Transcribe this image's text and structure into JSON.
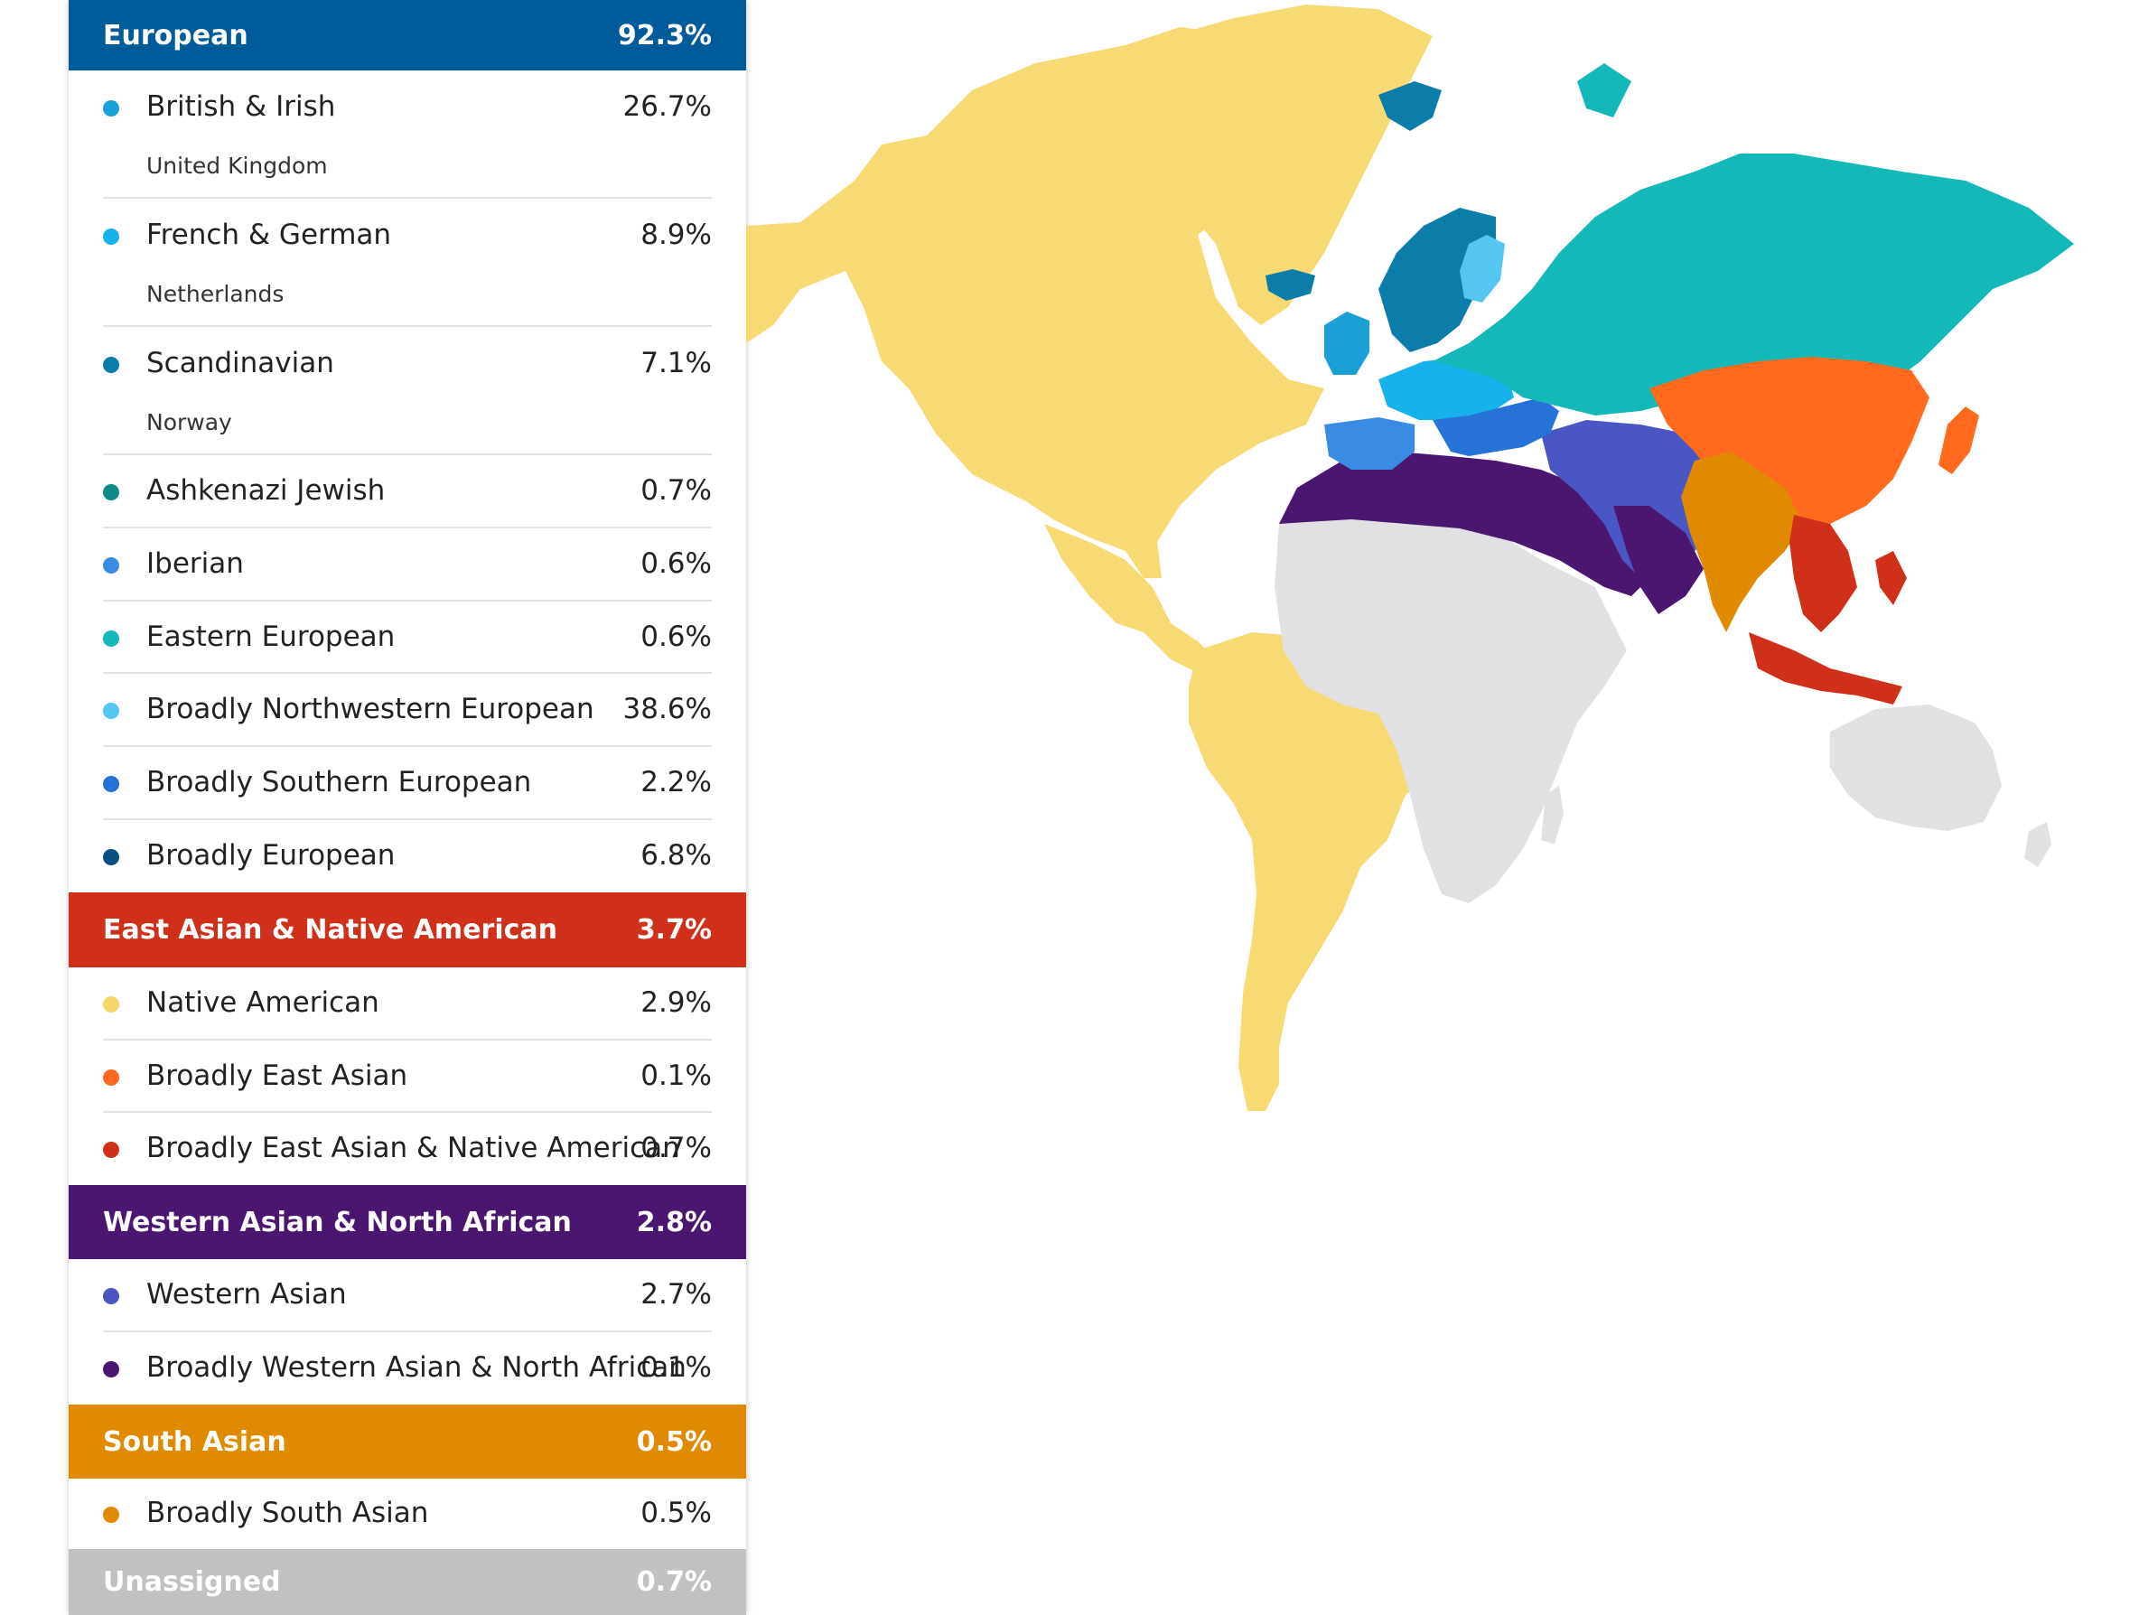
{
  "groups": [
    {
      "label": "European",
      "pct": "92.3%",
      "color": "#005b9a"
    },
    {
      "label": "East Asian & Native American",
      "pct": "3.7%",
      "color": "#d03019"
    },
    {
      "label": "Western Asian & North African",
      "pct": "2.8%",
      "color": "#4a1670"
    },
    {
      "label": "South Asian",
      "pct": "0.5%",
      "color": "#e08a00"
    },
    {
      "label": "Unassigned",
      "pct": "0.7%",
      "color": "#c0c1c3"
    }
  ],
  "european": [
    {
      "name": "British & Irish",
      "pct": "26.7%",
      "sub": "United Kingdom",
      "color": "#1a9fd6"
    },
    {
      "name": "French & German",
      "pct": "8.9%",
      "sub": "Netherlands",
      "color": "#17b1ec"
    },
    {
      "name": "Scandinavian",
      "pct": "7.1%",
      "sub": "Norway",
      "color": "#0c7ca8"
    },
    {
      "name": "Ashkenazi Jewish",
      "pct": "0.7%",
      "color": "#0e8b86"
    },
    {
      "name": "Iberian",
      "pct": "0.6%",
      "color": "#3a8be3"
    },
    {
      "name": "Eastern European",
      "pct": "0.6%",
      "color": "#14b8b8"
    },
    {
      "name": "Broadly Northwestern European",
      "pct": "38.6%",
      "color": "#54c6ef"
    },
    {
      "name": "Broadly Southern European",
      "pct": "2.2%",
      "color": "#2672d6"
    },
    {
      "name": "Broadly European",
      "pct": "6.8%",
      "color": "#074f80"
    }
  ],
  "east_asian": [
    {
      "name": "Native American",
      "pct": "2.9%",
      "color": "#f7d66c"
    },
    {
      "name": "Broadly East Asian",
      "pct": "0.1%",
      "color": "#ff6a1f"
    },
    {
      "name": "Broadly East Asian & Native American",
      "pct": "0.7%",
      "color": "#d03019"
    }
  ],
  "western_asian": [
    {
      "name": "Western Asian",
      "pct": "2.7%",
      "color": "#4a56c4"
    },
    {
      "name": "Broadly Western Asian & North African",
      "pct": "0.1%",
      "color": "#4a1670"
    }
  ],
  "south_asian": [
    {
      "name": "Broadly South Asian",
      "pct": "0.5%",
      "color": "#e08a00"
    }
  ],
  "map_colors": {
    "americas": "#f8da75",
    "africa": "#e1e1e3",
    "australia": "#e1e1e3",
    "russia": "#14b8b8",
    "east_asia": "#ff6a1f",
    "south_asia": "#e08a00",
    "southeast_asia": "#d03019",
    "middle_east": "#4a56c4",
    "north_africa": "#4a1670",
    "scandinavia": "#0c7ca8",
    "finland": "#54c6ef",
    "british": "#1a9fd6",
    "france": "#17b1ec",
    "iberia": "#3a8be3",
    "italy_balkans": "#2672d6"
  }
}
